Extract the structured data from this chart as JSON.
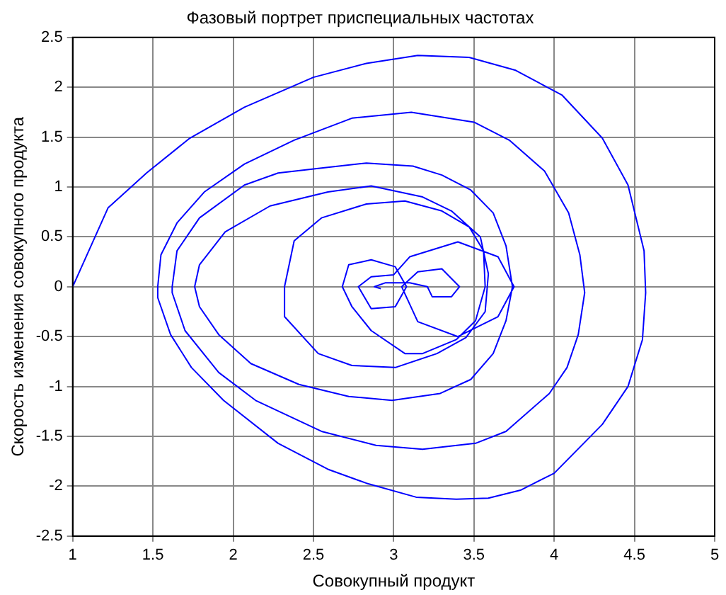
{
  "chart_data": {
    "type": "line",
    "title": "Фазовый портрет приспециальных частотах",
    "xlabel": "Совокупный продукт",
    "ylabel": "Скорость изменения совокупного продукта",
    "xlim": [
      1,
      5
    ],
    "xticks": [
      1,
      1.5,
      2,
      2.5,
      3,
      3.5,
      4,
      4.5,
      5
    ],
    "ylim": [
      -2.5,
      2.5
    ],
    "yticks": [
      -2.5,
      -2,
      -1.5,
      -1,
      -0.5,
      0,
      0.5,
      1,
      1.5,
      2,
      2.5
    ],
    "grid": true,
    "marker": "none",
    "line_style": "solid",
    "legend": false,
    "series": [
      {
        "color": "#0000ff",
        "x": [
          1,
          1.22,
          1.46,
          1.73,
          2.07,
          2.5,
          2.83,
          3.15,
          3.47,
          3.76,
          4.05,
          4.3,
          4.46,
          4.56,
          4.57,
          4.55,
          4.46,
          4.3,
          4,
          3.79,
          3.59,
          3.39,
          3.14,
          2.83,
          2.59,
          2.28,
          1.94,
          1.74,
          1.61,
          1.53,
          1.53,
          1.55,
          1.65,
          1.82,
          2.07,
          2.38,
          2.74,
          3.11,
          3.5,
          3.72,
          3.94,
          4.09,
          4.16,
          4.19,
          4.15,
          4.08,
          3.97,
          3.7,
          3.51,
          3.18,
          2.89,
          2.55,
          2.14,
          1.91,
          1.7,
          1.62,
          1.62,
          1.65,
          1.79,
          2.07,
          2.28,
          2.55,
          2.83,
          3.12,
          3.3,
          3.48,
          3.62,
          3.7,
          3.74,
          3.7,
          3.62,
          3.48,
          3.29,
          2.99,
          2.72,
          2.41,
          2.11,
          1.91,
          1.79,
          1.76,
          1.79,
          1.95,
          2.23,
          2.59,
          2.86,
          3.18,
          3.36,
          3.54,
          3.59,
          3.57,
          3.45,
          3.27,
          3.01,
          2.74,
          2.53,
          2.32,
          2.32,
          2.38,
          2.55,
          2.83,
          3.07,
          3.3,
          3.47,
          3.56,
          3.57,
          3.51,
          3.39,
          3.18,
          3.07,
          2.86,
          2.74,
          2.68,
          2.72,
          2.86,
          3.01,
          3.08,
          3.01,
          2.86,
          2.78,
          2.86,
          3,
          3.1,
          3.4,
          3.65,
          3.75,
          3.65,
          3.4,
          3.15,
          3.05,
          3.15,
          3.3,
          3.41,
          3.36,
          3.24,
          3.21,
          3.1,
          2.95,
          2.88,
          2.92
        ],
        "values": [
          0,
          0.79,
          1.14,
          1.49,
          1.8,
          2.1,
          2.24,
          2.32,
          2.3,
          2.17,
          1.92,
          1.49,
          1.02,
          0.36,
          -0.06,
          -0.53,
          -1,
          -1.38,
          -1.87,
          -2.04,
          -2.12,
          -2.13,
          -2.11,
          -1.97,
          -1.83,
          -1.57,
          -1.14,
          -0.81,
          -0.48,
          -0.11,
          0,
          0.32,
          0.64,
          0.95,
          1.23,
          1.47,
          1.69,
          1.75,
          1.65,
          1.47,
          1.16,
          0.74,
          0.32,
          -0.06,
          -0.48,
          -0.81,
          -1.07,
          -1.45,
          -1.57,
          -1.63,
          -1.59,
          -1.45,
          -1.14,
          -0.86,
          -0.44,
          -0.06,
          0,
          0.36,
          0.69,
          1.02,
          1.14,
          1.19,
          1.24,
          1.21,
          1.12,
          0.97,
          0.74,
          0.41,
          0,
          -0.34,
          -0.67,
          -0.93,
          -1.07,
          -1.14,
          -1.1,
          -0.98,
          -0.77,
          -0.48,
          -0.2,
          0,
          0.22,
          0.55,
          0.81,
          0.95,
          1.01,
          0.9,
          0.76,
          0.5,
          0.13,
          -0.25,
          -0.51,
          -0.67,
          -0.81,
          -0.79,
          -0.67,
          -0.3,
          0,
          0.46,
          0.69,
          0.83,
          0.86,
          0.76,
          0.6,
          0.36,
          0,
          -0.34,
          -0.53,
          -0.67,
          -0.67,
          -0.44,
          -0.2,
          0,
          0.22,
          0.27,
          0.2,
          0,
          -0.2,
          -0.22,
          0,
          0.1,
          0.12,
          0.3,
          0.45,
          0.3,
          0,
          -0.3,
          -0.5,
          -0.35,
          0,
          0.15,
          0.18,
          0,
          -0.1,
          -0.1,
          0,
          0.04,
          0.04,
          0,
          -0.02
        ]
      }
    ]
  }
}
